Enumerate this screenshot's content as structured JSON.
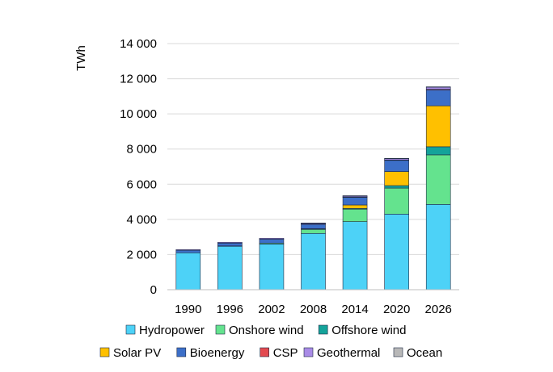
{
  "chart_data": {
    "type": "bar",
    "stacked": true,
    "title": "",
    "xlabel": "",
    "ylabel": "TWh",
    "ylim": [
      0,
      14000
    ],
    "yticks": [
      0,
      2000,
      4000,
      6000,
      8000,
      10000,
      12000,
      14000
    ],
    "ytick_labels": [
      "0",
      "2 000",
      "4 000",
      "6 000",
      "8 000",
      "10 000",
      "12 000",
      "14 000"
    ],
    "grid": true,
    "legend_position": "bottom",
    "categories": [
      "1990",
      "1996",
      "2002",
      "2008",
      "2014",
      "2020",
      "2026"
    ],
    "series": [
      {
        "name": "Hydropower",
        "color": "#4DD2F7",
        "values": [
          2100,
          2480,
          2600,
          3200,
          3870,
          4300,
          4850
        ]
      },
      {
        "name": "Onshore wind",
        "color": "#64E38E",
        "values": [
          0,
          10,
          50,
          240,
          710,
          1480,
          2820
        ]
      },
      {
        "name": "Offshore wind",
        "color": "#14A39A",
        "values": [
          0,
          0,
          0,
          10,
          40,
          140,
          460
        ]
      },
      {
        "name": "Solar PV",
        "color": "#FFC000",
        "values": [
          0,
          0,
          0,
          20,
          200,
          800,
          2330
        ]
      },
      {
        "name": "Bioenergy",
        "color": "#3C6FC8",
        "values": [
          140,
          160,
          220,
          260,
          440,
          640,
          900
        ]
      },
      {
        "name": "CSP",
        "color": "#E34A50",
        "values": [
          0,
          0,
          0,
          5,
          10,
          15,
          40
        ]
      },
      {
        "name": "Geothermal",
        "color": "#A98BE6",
        "values": [
          40,
          45,
          55,
          60,
          70,
          90,
          130
        ]
      },
      {
        "name": "Ocean",
        "color": "#B8B8B8",
        "values": [
          0,
          0,
          0,
          1,
          1,
          2,
          10
        ]
      }
    ],
    "legend_rows": [
      [
        "Hydropower",
        "Onshore wind",
        "Offshore wind"
      ],
      [
        "Solar PV",
        "Bioenergy",
        "CSP",
        "Geothermal",
        "Ocean"
      ]
    ]
  }
}
